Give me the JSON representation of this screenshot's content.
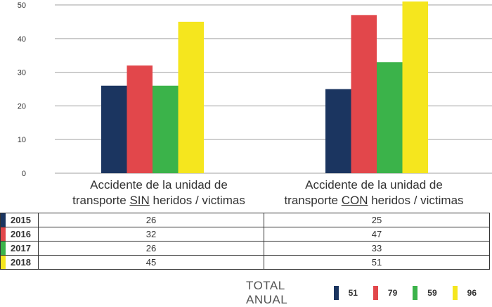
{
  "chart_data": {
    "type": "bar",
    "categories": [
      [
        "Accidente de la unidad de",
        "transporte ",
        "SIN",
        " heridos / victimas"
      ],
      [
        "Accidente de la unidad de",
        "transporte ",
        "CON",
        " heridos / victimas"
      ]
    ],
    "series": [
      {
        "name": "2015",
        "color": "#1b3560",
        "values": [
          26,
          25
        ]
      },
      {
        "name": "2016",
        "color": "#e2474b",
        "values": [
          32,
          47
        ]
      },
      {
        "name": "2017",
        "color": "#3bb34a",
        "values": [
          26,
          33
        ]
      },
      {
        "name": "2018",
        "color": "#f5e61e",
        "values": [
          45,
          51
        ]
      }
    ],
    "yticks": [
      0,
      10,
      20,
      30,
      40,
      50
    ],
    "ylim": [
      0,
      50
    ],
    "grid": true,
    "legend": "table-below"
  },
  "table": {
    "rows": [
      {
        "year": "2015",
        "values": [
          "26",
          "25"
        ]
      },
      {
        "year": "2016",
        "values": [
          "32",
          "47"
        ]
      },
      {
        "year": "2017",
        "values": [
          "26",
          "33"
        ]
      },
      {
        "year": "2018",
        "values": [
          "45",
          "51"
        ]
      }
    ]
  },
  "total": {
    "title": "TOTAL ANUAL",
    "items": [
      {
        "value": "51",
        "color": "#1b3560"
      },
      {
        "value": "79",
        "color": "#e2474b"
      },
      {
        "value": "59",
        "color": "#3bb34a"
      },
      {
        "value": "96",
        "color": "#f5e61e"
      }
    ]
  }
}
